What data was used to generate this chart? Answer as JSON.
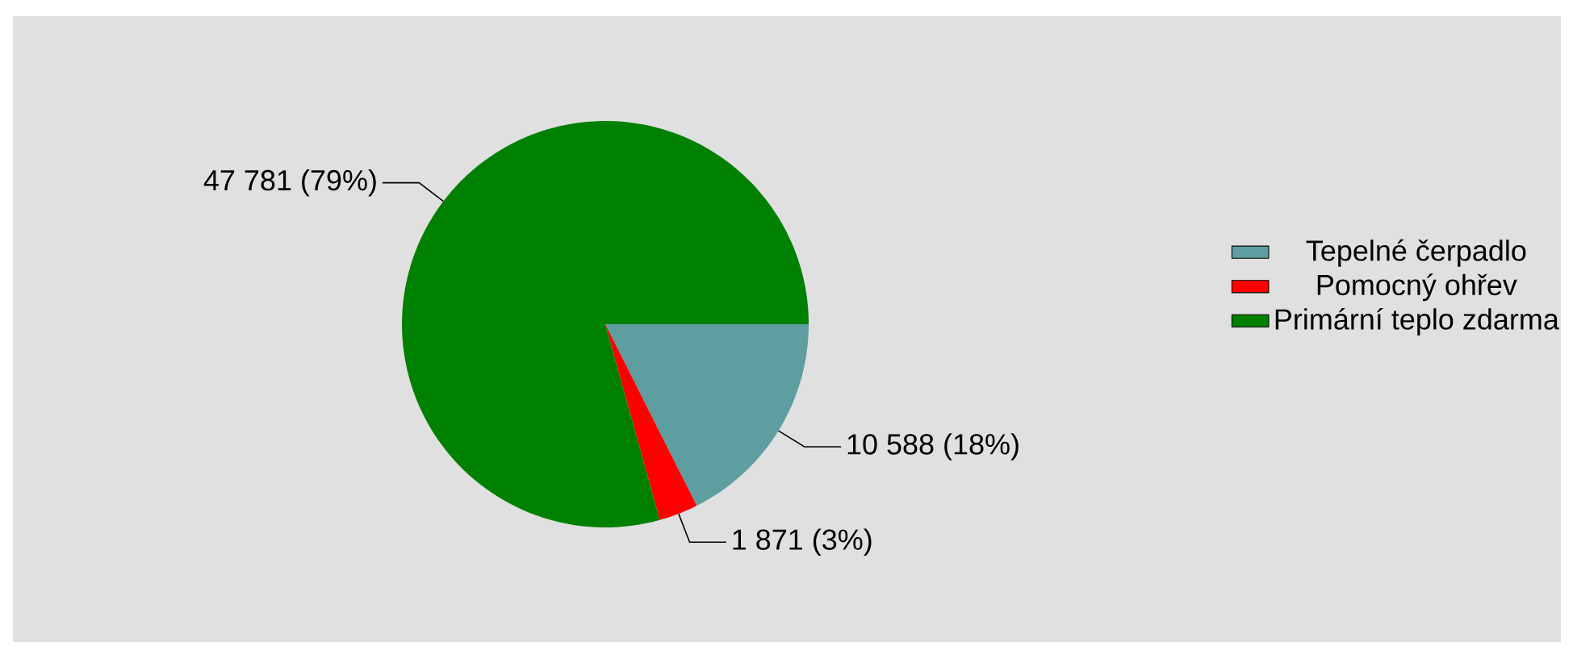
{
  "chart_data": {
    "type": "pie",
    "categories": [
      "Tepelné čerpadlo",
      "Pomocný ohřev",
      "Primární teplo zdarma"
    ],
    "values": [
      10588,
      1871,
      47781
    ],
    "colors": [
      "#5f9ea0",
      "#ff0000",
      "#008000"
    ],
    "value_labels": [
      "10 588 (18%)",
      "1 871 (3%)",
      "47 781 (79%)"
    ],
    "legend": "right"
  }
}
